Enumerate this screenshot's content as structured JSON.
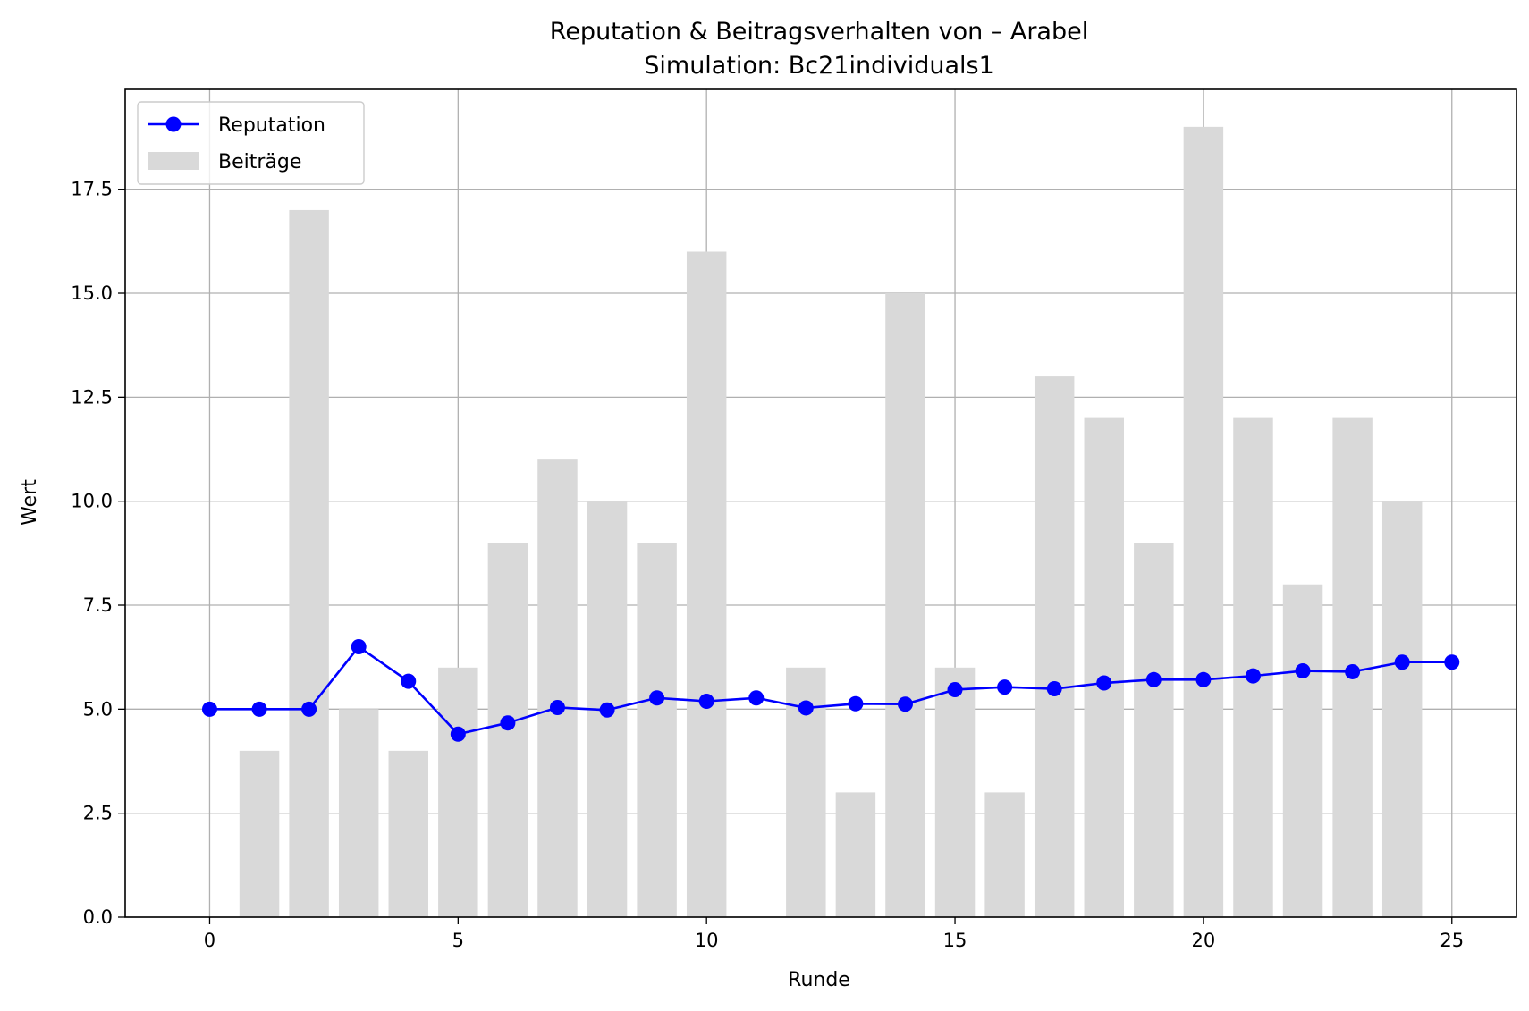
{
  "chart_data": {
    "type": "bar+line",
    "title": "Reputation & Beitragsverhalten von – Arabel",
    "subtitle": "Simulation: Bc21individuals1",
    "xlabel": "Runde",
    "ylabel": "Wert",
    "xlim": [
      -1.7,
      26.3
    ],
    "ylim": [
      0,
      19.9
    ],
    "xticks": [
      0,
      5,
      10,
      15,
      20,
      25
    ],
    "xtick_labels": [
      "0",
      "5",
      "10",
      "15",
      "20",
      "25"
    ],
    "yticks": [
      0,
      2.5,
      5,
      7.5,
      10,
      12.5,
      15,
      17.5
    ],
    "ytick_labels": [
      "0.0",
      "2.5",
      "5.0",
      "7.5",
      "10.0",
      "12.5",
      "15.0",
      "17.5"
    ],
    "grid": true,
    "legend_position": "top-left",
    "series": [
      {
        "name": "Reputation",
        "kind": "line",
        "color": "#0000ff",
        "x": [
          0,
          1,
          2,
          3,
          4,
          5,
          6,
          7,
          8,
          9,
          10,
          11,
          12,
          13,
          14,
          15,
          16,
          17,
          18,
          19,
          20,
          21,
          22,
          23,
          24,
          25
        ],
        "values": [
          5.0,
          5.0,
          5.0,
          6.5,
          5.67,
          4.4,
          4.67,
          5.04,
          4.98,
          5.27,
          5.19,
          5.27,
          5.03,
          5.13,
          5.12,
          5.47,
          5.53,
          5.49,
          5.63,
          5.71,
          5.71,
          5.8,
          5.92,
          5.9,
          6.13,
          6.13
        ]
      },
      {
        "name": "Beiträge",
        "kind": "bar",
        "color": "#d9d9d9",
        "x": [
          1,
          2,
          3,
          4,
          5,
          6,
          7,
          8,
          9,
          10,
          12,
          13,
          14,
          15,
          16,
          17,
          18,
          19,
          20,
          21,
          22,
          23,
          24
        ],
        "values": [
          4,
          17,
          5,
          4,
          6,
          9,
          11,
          10,
          9,
          16,
          6,
          3,
          15,
          6,
          3,
          13,
          12,
          9,
          19,
          12,
          8,
          12,
          10
        ]
      }
    ]
  }
}
